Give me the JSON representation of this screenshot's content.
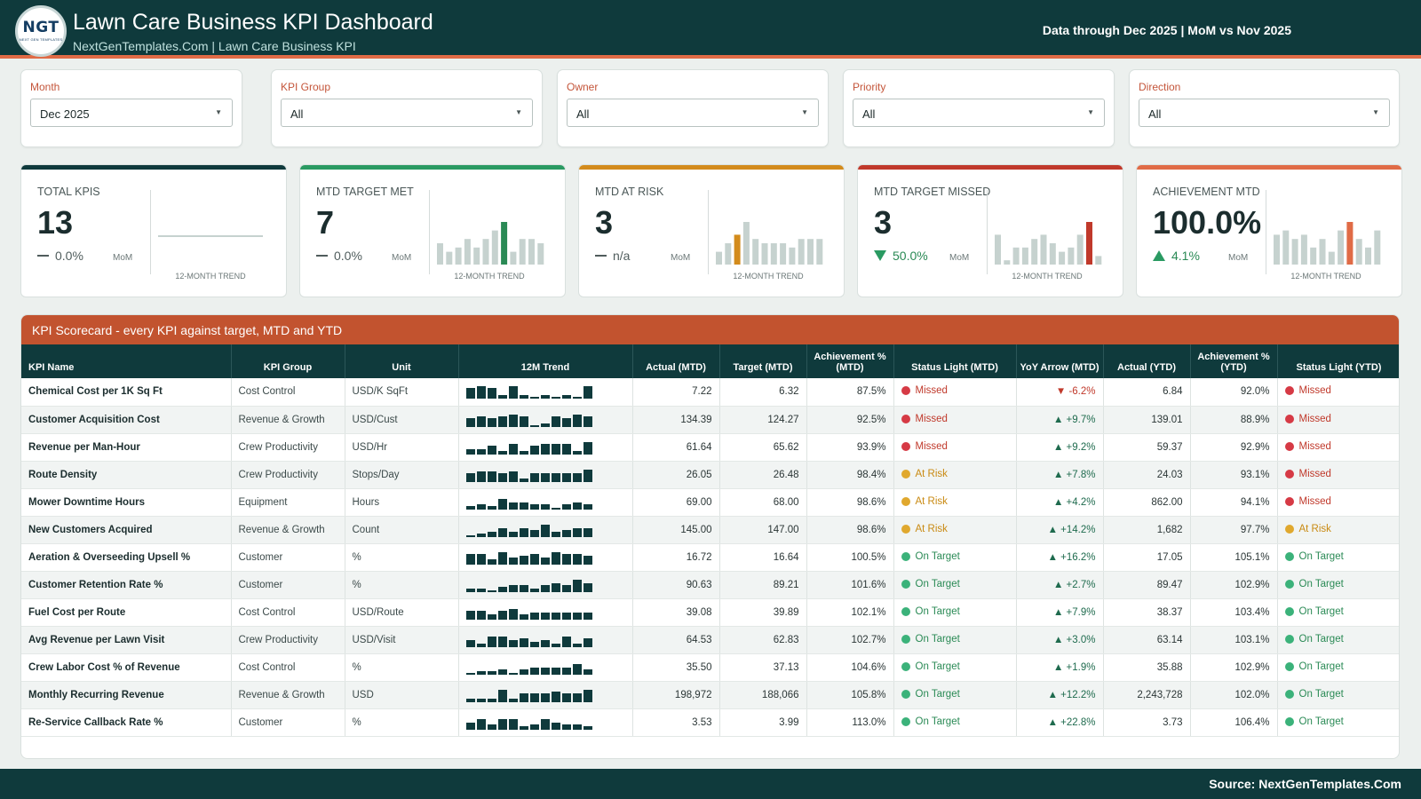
{
  "header": {
    "logo_main": "NGT",
    "logo_sub": "NEXT GEN TEMPLATES",
    "title": "Lawn Care Business KPI Dashboard",
    "subtitle": "NextGenTemplates.Com | Lawn Care Business KPI",
    "data_through": "Data through Dec 2025 | MoM vs Nov 2025"
  },
  "filters": [
    {
      "label": "Month",
      "value": "Dec 2025"
    },
    {
      "label": "KPI Group",
      "value": "All"
    },
    {
      "label": "Owner",
      "value": "All"
    },
    {
      "label": "Priority",
      "value": "All"
    },
    {
      "label": "Direction",
      "value": "All"
    }
  ],
  "kpi_cards": [
    {
      "label": "TOTAL KPIS",
      "value": "13",
      "delta": "0.0%",
      "delta_icon": "dash",
      "mom": "MoM",
      "trend_label": "12-MONTH TREND",
      "accent": "#0f3a3c",
      "highlight": "#0f3a3c",
      "trend": [],
      "highlight_index": -1
    },
    {
      "label": "MTD TARGET MET",
      "value": "7",
      "delta": "0.0%",
      "delta_icon": "dash",
      "mom": "MoM",
      "trend_label": "12-MONTH TREND",
      "accent": "#2a9a62",
      "highlight": "#2a8a55",
      "trend": [
        5,
        3,
        4,
        6,
        4,
        6,
        8,
        10,
        3,
        6,
        6,
        5
      ],
      "highlight_index": 7
    },
    {
      "label": "MTD AT RISK",
      "value": "3",
      "delta": "n/a",
      "delta_icon": "dash",
      "mom": "MoM",
      "trend_label": "12-MONTH TREND",
      "accent": "#d38b1c",
      "highlight": "#d38b1c",
      "trend": [
        3,
        5,
        7,
        10,
        6,
        5,
        5,
        5,
        4,
        6,
        6,
        6
      ],
      "highlight_index": 2
    },
    {
      "label": "MTD TARGET MISSED",
      "value": "3",
      "delta": "50.0%",
      "delta_icon": "down",
      "mom": "MoM",
      "trend_label": "12-MONTH TREND",
      "accent": "#c0392b",
      "highlight": "#c0392b",
      "trend": [
        7,
        1,
        4,
        4,
        6,
        7,
        5,
        3,
        4,
        7,
        10,
        2
      ],
      "highlight_index": 10
    },
    {
      "label": "ACHIEVEMENT MTD",
      "value": "100.0%",
      "delta": "4.1%",
      "delta_icon": "up",
      "mom": "MoM",
      "trend_label": "12-MONTH TREND",
      "accent": "#e06b46",
      "highlight": "#e06b46",
      "trend": [
        7,
        8,
        6,
        7,
        4,
        6,
        3,
        8,
        10,
        6,
        4,
        8
      ],
      "highlight_index": 8
    }
  ],
  "scorecard": {
    "title": "KPI Scorecard - every KPI against target, MTD and YTD",
    "columns": [
      "KPI Name",
      "KPI Group",
      "Unit",
      "12M Trend",
      "Actual (MTD)",
      "Target (MTD)",
      "Achievement % (MTD)",
      "Status Light (MTD)",
      "YoY Arrow (MTD)",
      "Actual (YTD)",
      "Achievement % (YTD)",
      "Status Light (YTD)"
    ],
    "rows": [
      {
        "name": "Chemical Cost per 1K Sq Ft",
        "group": "Cost Control",
        "unit": "USD/K SqFt",
        "trend": [
          6,
          7,
          6,
          2,
          7,
          2,
          1,
          2,
          1,
          2,
          1,
          7
        ],
        "actual_mtd": "7.22",
        "target_mtd": "6.32",
        "ach_mtd": "87.5%",
        "status_mtd": "Missed",
        "yoy": "▼ -6.2%",
        "actual_ytd": "6.84",
        "ach_ytd": "92.0%",
        "status_ytd": "Missed"
      },
      {
        "name": "Customer Acquisition Cost",
        "group": "Revenue & Growth",
        "unit": "USD/Cust",
        "trend": [
          5,
          6,
          5,
          6,
          7,
          6,
          1,
          2,
          6,
          5,
          7,
          6
        ],
        "actual_mtd": "134.39",
        "target_mtd": "124.27",
        "ach_mtd": "92.5%",
        "status_mtd": "Missed",
        "yoy": "▲ +9.7%",
        "actual_ytd": "139.01",
        "ach_ytd": "88.9%",
        "status_ytd": "Missed"
      },
      {
        "name": "Revenue per Man-Hour",
        "group": "Crew Productivity",
        "unit": "USD/Hr",
        "trend": [
          3,
          3,
          5,
          2,
          6,
          2,
          5,
          6,
          6,
          6,
          2,
          7
        ],
        "actual_mtd": "61.64",
        "target_mtd": "65.62",
        "ach_mtd": "93.9%",
        "status_mtd": "Missed",
        "yoy": "▲ +9.2%",
        "actual_ytd": "59.37",
        "ach_ytd": "92.9%",
        "status_ytd": "Missed"
      },
      {
        "name": "Route Density",
        "group": "Crew Productivity",
        "unit": "Stops/Day",
        "trend": [
          5,
          6,
          6,
          5,
          6,
          2,
          5,
          5,
          5,
          5,
          5,
          7
        ],
        "actual_mtd": "26.05",
        "target_mtd": "26.48",
        "ach_mtd": "98.4%",
        "status_mtd": "At Risk",
        "yoy": "▲ +7.8%",
        "actual_ytd": "24.03",
        "ach_ytd": "93.1%",
        "status_ytd": "Missed"
      },
      {
        "name": "Mower Downtime Hours",
        "group": "Equipment",
        "unit": "Hours",
        "trend": [
          2,
          3,
          2,
          6,
          4,
          4,
          3,
          3,
          1,
          3,
          4,
          3
        ],
        "actual_mtd": "69.00",
        "target_mtd": "68.00",
        "ach_mtd": "98.6%",
        "status_mtd": "At Risk",
        "yoy": "▲ +4.2%",
        "actual_ytd": "862.00",
        "ach_ytd": "94.1%",
        "status_ytd": "Missed"
      },
      {
        "name": "New Customers Acquired",
        "group": "Revenue & Growth",
        "unit": "Count",
        "trend": [
          1,
          2,
          3,
          5,
          3,
          5,
          4,
          7,
          3,
          4,
          5,
          5
        ],
        "actual_mtd": "145.00",
        "target_mtd": "147.00",
        "ach_mtd": "98.6%",
        "status_mtd": "At Risk",
        "yoy": "▲ +14.2%",
        "actual_ytd": "1,682",
        "ach_ytd": "97.7%",
        "status_ytd": "At Risk"
      },
      {
        "name": "Aeration & Overseeding Upsell %",
        "group": "Customer",
        "unit": "%",
        "trend": [
          6,
          6,
          3,
          7,
          4,
          5,
          6,
          4,
          7,
          6,
          6,
          5
        ],
        "actual_mtd": "16.72",
        "target_mtd": "16.64",
        "ach_mtd": "100.5%",
        "status_mtd": "On Target",
        "yoy": "▲ +16.2%",
        "actual_ytd": "17.05",
        "ach_ytd": "105.1%",
        "status_ytd": "On Target"
      },
      {
        "name": "Customer Retention Rate %",
        "group": "Customer",
        "unit": "%",
        "trend": [
          2,
          2,
          1,
          3,
          4,
          4,
          2,
          4,
          5,
          4,
          7,
          5
        ],
        "actual_mtd": "90.63",
        "target_mtd": "89.21",
        "ach_mtd": "101.6%",
        "status_mtd": "On Target",
        "yoy": "▲ +2.7%",
        "actual_ytd": "89.47",
        "ach_ytd": "102.9%",
        "status_ytd": "On Target"
      },
      {
        "name": "Fuel Cost per Route",
        "group": "Cost Control",
        "unit": "USD/Route",
        "trend": [
          5,
          5,
          3,
          5,
          6,
          3,
          4,
          4,
          4,
          4,
          4,
          4
        ],
        "actual_mtd": "39.08",
        "target_mtd": "39.89",
        "ach_mtd": "102.1%",
        "status_mtd": "On Target",
        "yoy": "▲ +7.9%",
        "actual_ytd": "38.37",
        "ach_ytd": "103.4%",
        "status_ytd": "On Target"
      },
      {
        "name": "Avg Revenue per Lawn Visit",
        "group": "Crew Productivity",
        "unit": "USD/Visit",
        "trend": [
          4,
          2,
          6,
          6,
          4,
          5,
          3,
          4,
          2,
          6,
          2,
          5
        ],
        "actual_mtd": "64.53",
        "target_mtd": "62.83",
        "ach_mtd": "102.7%",
        "status_mtd": "On Target",
        "yoy": "▲ +3.0%",
        "actual_ytd": "63.14",
        "ach_ytd": "103.1%",
        "status_ytd": "On Target"
      },
      {
        "name": "Crew Labor Cost % of Revenue",
        "group": "Cost Control",
        "unit": "%",
        "trend": [
          1,
          2,
          2,
          3,
          1,
          3,
          4,
          4,
          4,
          4,
          6,
          3
        ],
        "actual_mtd": "35.50",
        "target_mtd": "37.13",
        "ach_mtd": "104.6%",
        "status_mtd": "On Target",
        "yoy": "▲ +1.9%",
        "actual_ytd": "35.88",
        "ach_ytd": "102.9%",
        "status_ytd": "On Target"
      },
      {
        "name": "Monthly Recurring Revenue",
        "group": "Revenue & Growth",
        "unit": "USD",
        "trend": [
          2,
          2,
          2,
          7,
          2,
          5,
          5,
          5,
          6,
          5,
          5,
          7
        ],
        "actual_mtd": "198,972",
        "target_mtd": "188,066",
        "ach_mtd": "105.8%",
        "status_mtd": "On Target",
        "yoy": "▲ +12.2%",
        "actual_ytd": "2,243,728",
        "ach_ytd": "102.0%",
        "status_ytd": "On Target"
      },
      {
        "name": "Re-Service Callback Rate %",
        "group": "Customer",
        "unit": "%",
        "trend": [
          4,
          6,
          3,
          6,
          6,
          2,
          3,
          6,
          4,
          3,
          3,
          2
        ],
        "actual_mtd": "3.53",
        "target_mtd": "3.99",
        "ach_mtd": "113.0%",
        "status_mtd": "On Target",
        "yoy": "▲ +22.8%",
        "actual_ytd": "3.73",
        "ach_ytd": "106.4%",
        "status_ytd": "On Target"
      }
    ]
  },
  "colors": {
    "brand_dark": "#0f3a3c",
    "accent_orange": "#e06b46",
    "missed": "#d63a45",
    "at_risk": "#e0a82e",
    "on_target": "#3bb27a",
    "spark_muted": "#c6d2cf"
  },
  "footer": {
    "source": "Source: NextGenTemplates.Com"
  }
}
